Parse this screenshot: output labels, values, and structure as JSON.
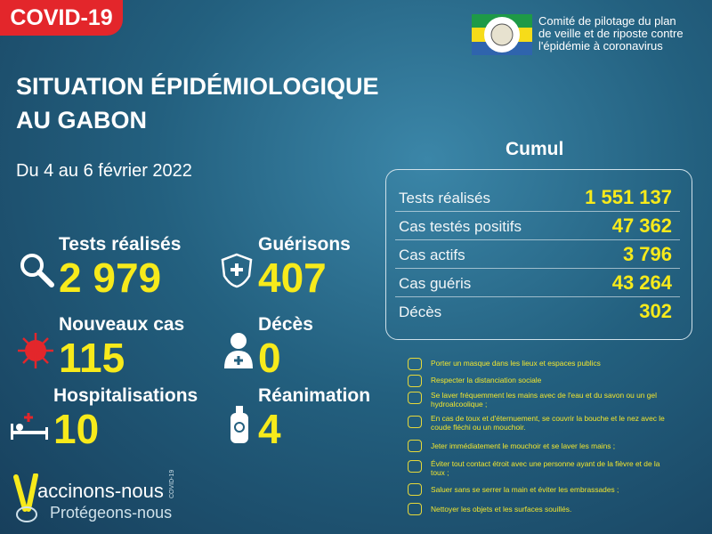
{
  "badge": "COVID-19",
  "organization": {
    "lines": [
      "Comité de pilotage du plan",
      "de veille et de riposte contre",
      "l'épidémie à coronavirus"
    ]
  },
  "title": {
    "lines": [
      "SITUATION ÉPIDÉMIOLOGIQUE",
      "AU GABON"
    ]
  },
  "period": "Du 4 au 6 février 2022",
  "stats": [
    {
      "label": "Tests réalisés",
      "value": "2 979"
    },
    {
      "label": "Guérisons",
      "value": "407"
    },
    {
      "label": "Nouveaux cas",
      "value": "115"
    },
    {
      "label": "Décès",
      "value": "0"
    },
    {
      "label": "Hospitalisations",
      "value": "10"
    },
    {
      "label": "Réanimation",
      "value": "4"
    }
  ],
  "cumul": {
    "title": "Cumul",
    "rows": [
      {
        "label": "Tests réalisés",
        "value": "1 551 137"
      },
      {
        "label": "Cas testés positifs",
        "value": "47 362"
      },
      {
        "label": "Cas actifs",
        "value": "3 796"
      },
      {
        "label": "Cas guéris",
        "value": "43 264"
      },
      {
        "label": "Décès",
        "value": "302"
      }
    ]
  },
  "measures": [
    "Porter un masque dans les lieux et espaces publics",
    "Respecter la distanciation sociale",
    "Se laver fréquemment les mains avec de l'eau et du savon ou un gel hydroalcoolique ;",
    "En cas de toux et d'éternuement, se couvrir la bouche et le nez avec le coude fléchi ou un mouchoir.",
    "Jeter immédiatement le mouchoir et se laver les mains ;",
    "Éviter tout contact étroit avec une personne ayant de la fièvre et de la toux ;",
    "Saluer sans se serrer la main et éviter les embrassades ;",
    "Nettoyer les objets et les surfaces souillés."
  ],
  "footer": {
    "slogan1": "accinons-nous",
    "slogan2": "Protégeons-nous",
    "tag": "COVID-19"
  }
}
